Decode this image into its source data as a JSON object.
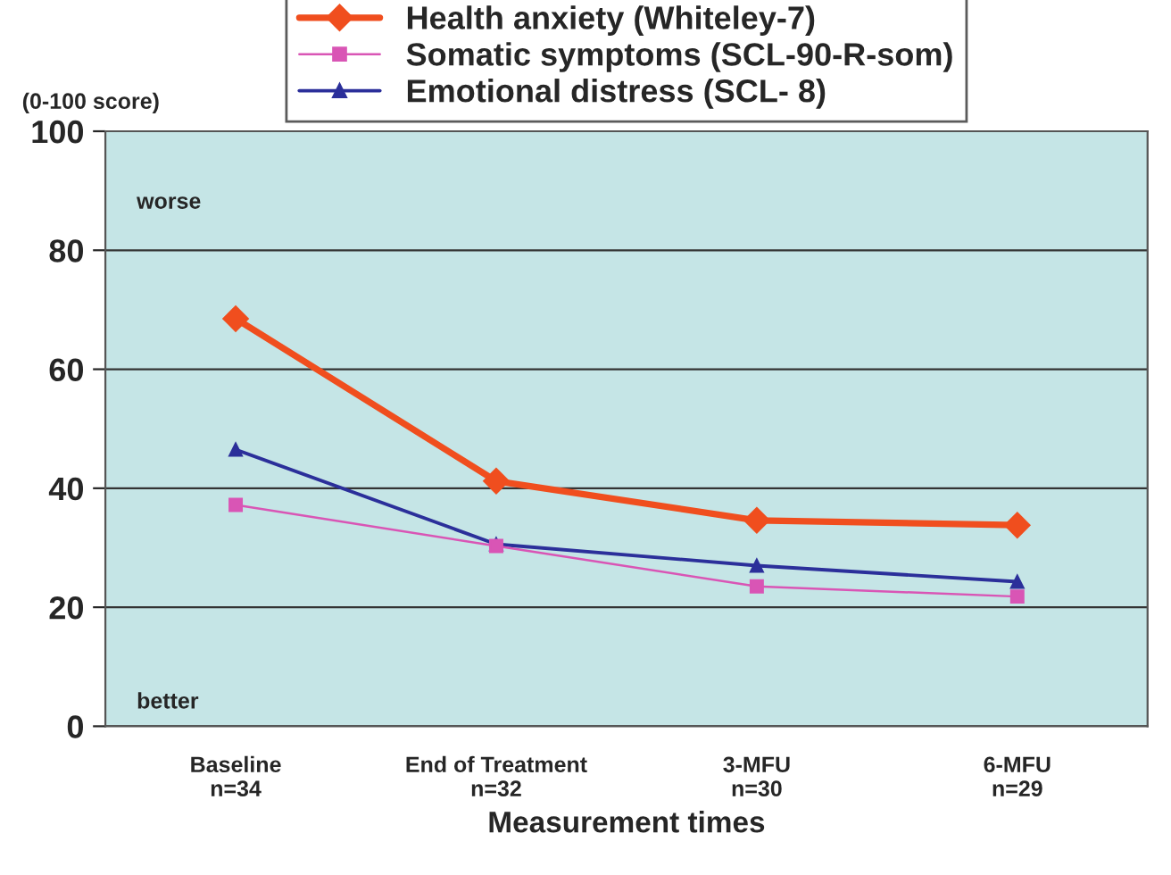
{
  "chart_data": {
    "type": "line",
    "ylabel": "(0-100 score)",
    "xlabel": "Measurement times",
    "categories": [
      "Baseline\nn=34",
      "End of Treatment\nn=32",
      "3-MFU\nn=30",
      "6-MFU\nn=29"
    ],
    "series": [
      {
        "name": "Health anxiety (Whiteley-7)",
        "color": "#f04e1e",
        "marker": "diamond",
        "values": [
          68.5,
          41.2,
          34.6,
          33.8
        ]
      },
      {
        "name": "Somatic symptoms (SCL-90-R-som)",
        "color": "#d955b5",
        "marker": "square",
        "values": [
          37.2,
          30.3,
          23.5,
          21.8
        ]
      },
      {
        "name": "Emotional distress (SCL- 8)",
        "color": "#2b2f9a",
        "marker": "triangle",
        "values": [
          46.5,
          30.6,
          27.0,
          24.3
        ]
      }
    ],
    "ylim": [
      0,
      100
    ],
    "yticks": [
      0,
      20,
      40,
      60,
      80,
      100
    ],
    "grid": "y",
    "legend": "top",
    "annotations": [
      "worse",
      "better"
    ]
  }
}
